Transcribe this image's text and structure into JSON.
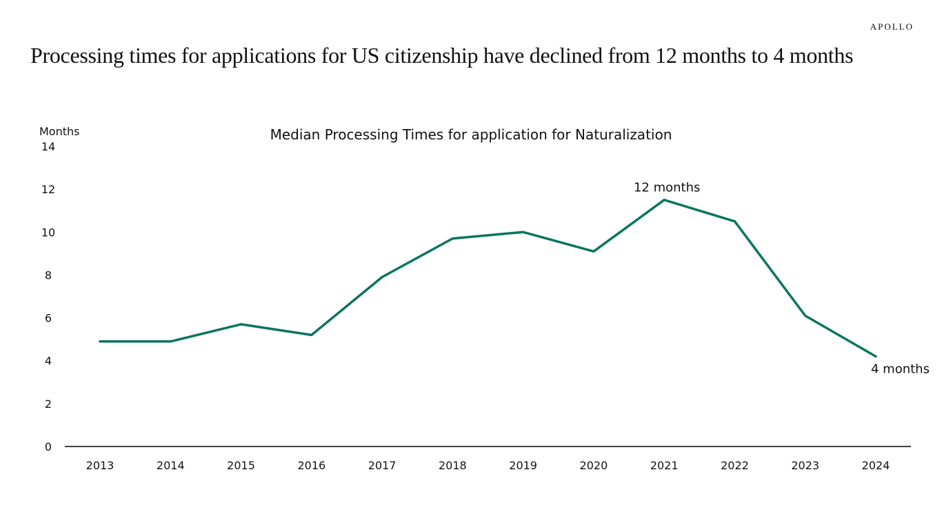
{
  "brand": "APOLLO",
  "headline": "Processing times for applications for US citizenship have declined from 12 months to 4 months",
  "colors": {
    "line": "#0b7560",
    "axis": "#000000",
    "text": "#111111"
  },
  "chart_data": {
    "type": "line",
    "title": "Median Processing Times for application for Naturalization",
    "ylabel": "Months",
    "xlabel": "",
    "ylim": [
      0,
      14
    ],
    "yticks": [
      0,
      2,
      4,
      6,
      8,
      10,
      12,
      14
    ],
    "grid": false,
    "legend": "none",
    "categories": [
      "2013",
      "2014",
      "2015",
      "2016",
      "2017",
      "2018",
      "2019",
      "2020",
      "2021",
      "2022",
      "2023",
      "2024"
    ],
    "series": [
      {
        "values": [
          4.9,
          4.9,
          5.7,
          5.2,
          7.9,
          9.7,
          10.0,
          9.1,
          11.5,
          10.5,
          6.1,
          4.2
        ]
      }
    ],
    "annotations": [
      {
        "text": "12 months",
        "category": "2021"
      },
      {
        "text": "4 months",
        "category": "2024"
      }
    ]
  }
}
